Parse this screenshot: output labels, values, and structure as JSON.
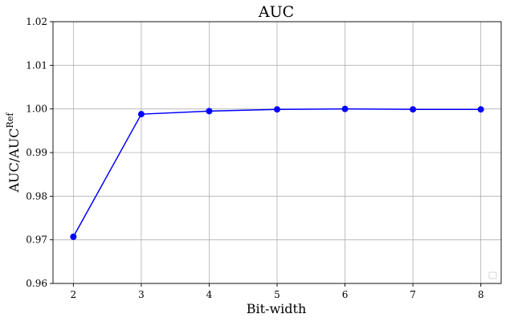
{
  "chart_data": {
    "type": "line",
    "title": "AUC",
    "xlabel": "Bit-width",
    "ylabel_main": "AUC/AUC",
    "ylabel_sup": "Ref",
    "x": [
      2,
      3,
      4,
      5,
      6,
      7,
      8
    ],
    "series": [
      {
        "values": [
          0.9707,
          0.9988,
          0.9995,
          0.9999,
          1.0,
          0.9999,
          0.9999
        ],
        "color": "#0000ff",
        "marker": "circle"
      }
    ],
    "xlim": [
      1.7,
      8.3
    ],
    "ylim": [
      0.96,
      1.02
    ],
    "xticks": [
      2,
      3,
      4,
      5,
      6,
      7,
      8
    ],
    "xtick_labels": [
      "2",
      "3",
      "4",
      "5",
      "6",
      "7",
      "8"
    ],
    "yticks": [
      0.96,
      0.97,
      0.98,
      0.99,
      1.0,
      1.01,
      1.02
    ],
    "ytick_labels": [
      "0.96",
      "0.97",
      "0.98",
      "0.99",
      "1.00",
      "1.01",
      "1.02"
    ],
    "grid": true,
    "legend": "lower-right"
  }
}
